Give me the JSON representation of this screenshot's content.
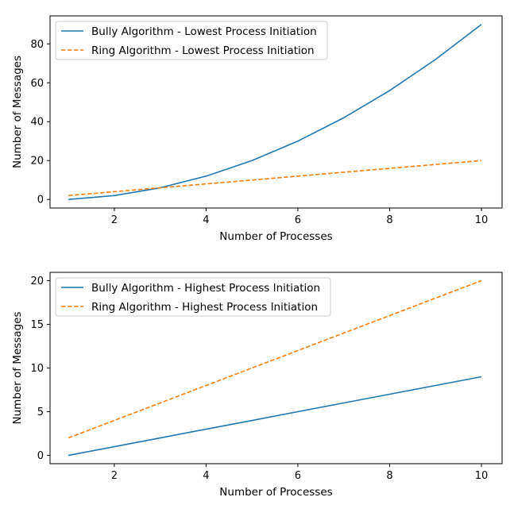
{
  "chart_data": [
    {
      "type": "line",
      "title": "",
      "xlabel": "Number of Processes",
      "ylabel": "Number of Messages",
      "x": [
        1,
        2,
        3,
        4,
        5,
        6,
        7,
        8,
        9,
        10
      ],
      "xlim": [
        0.6,
        10.45
      ],
      "ylim": [
        -4.4,
        94.4
      ],
      "xticks": [
        2,
        4,
        6,
        8,
        10
      ],
      "yticks": [
        0,
        20,
        40,
        60,
        80
      ],
      "grid": false,
      "legend_position": "upper-left",
      "series": [
        {
          "name": "Bully Algorithm - Lowest Process Initiation",
          "color": "#1f77b4",
          "style": "solid",
          "values": [
            0,
            2,
            6,
            12,
            20,
            30,
            42,
            56,
            72,
            90
          ]
        },
        {
          "name": "Ring Algorithm - Lowest Process Initiation",
          "color": "#ff7f0e",
          "style": "dashed",
          "values": [
            2,
            4,
            6,
            8,
            10,
            12,
            14,
            16,
            18,
            20
          ]
        }
      ]
    },
    {
      "type": "line",
      "title": "",
      "xlabel": "Number of Processes",
      "ylabel": "Number of Messages",
      "x": [
        1,
        2,
        3,
        4,
        5,
        6,
        7,
        8,
        9,
        10
      ],
      "xlim": [
        0.6,
        10.45
      ],
      "ylim": [
        -0.95,
        20.95
      ],
      "xticks": [
        2,
        4,
        6,
        8,
        10
      ],
      "yticks": [
        0,
        5,
        10,
        15,
        20
      ],
      "grid": false,
      "legend_position": "upper-left",
      "series": [
        {
          "name": "Bully Algorithm - Highest Process Initiation",
          "color": "#1f77b4",
          "style": "solid",
          "values": [
            0,
            1,
            2,
            3,
            4,
            5,
            6,
            7,
            8,
            9
          ]
        },
        {
          "name": "Ring Algorithm - Highest Process Initiation",
          "color": "#ff7f0e",
          "style": "dashed",
          "values": [
            2,
            4,
            6,
            8,
            10,
            12,
            14,
            16,
            18,
            20
          ]
        }
      ]
    }
  ]
}
